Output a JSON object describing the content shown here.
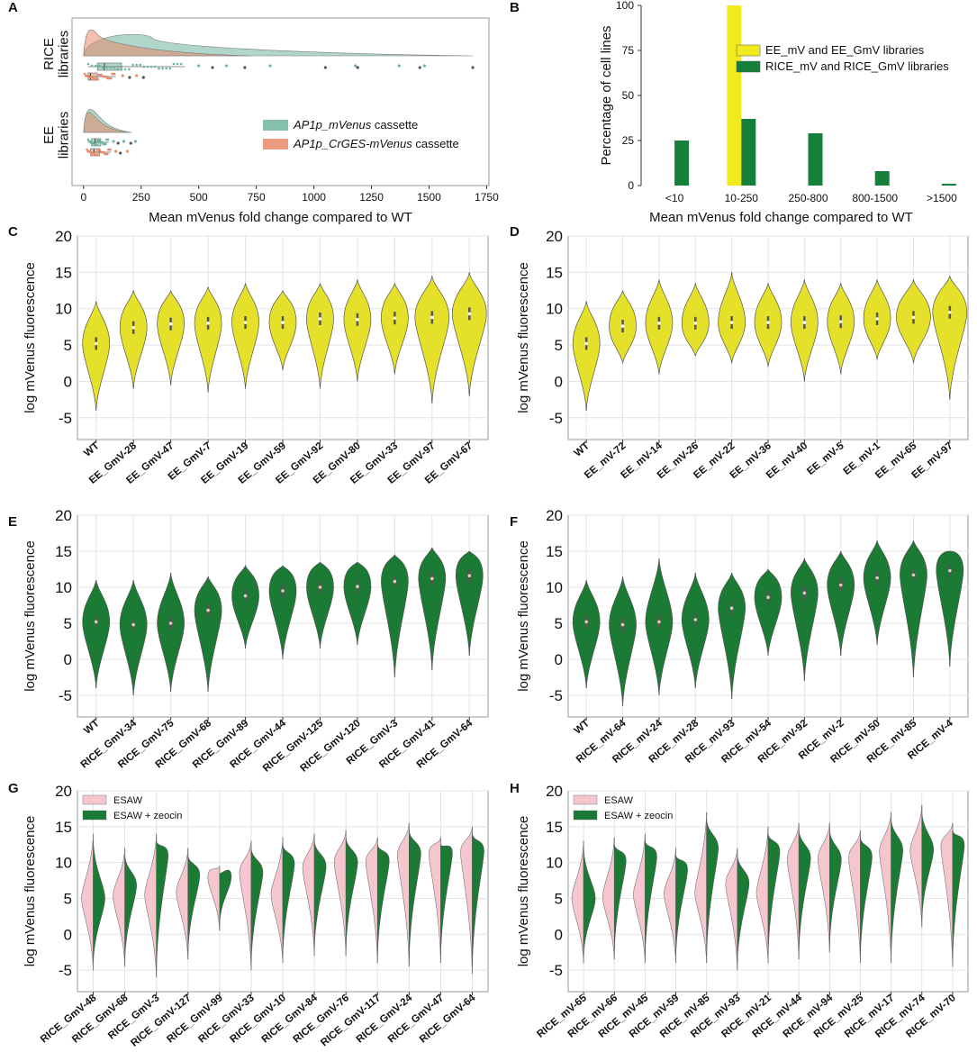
{
  "figure": {
    "panels": [
      "A",
      "B",
      "C",
      "D",
      "E",
      "F",
      "G",
      "H"
    ]
  },
  "chart_data": [
    {
      "panel": "A",
      "type": "raincloud",
      "xlabel": "Mean mVenus fold change compared to WT",
      "xticks": [
        0,
        250,
        500,
        750,
        1000,
        1250,
        1500,
        1750
      ],
      "xlim": [
        -50,
        1760
      ],
      "groups": [
        {
          "label": "RICE libraries",
          "label_lines": [
            "RICE",
            "libraries"
          ],
          "series": [
            {
              "name": "AP1p_mVenus",
              "box": [
                20,
                60,
                165,
                440
              ],
              "median": 90,
              "outliers": [
                500,
                560,
                620,
                700,
                810,
                1050,
                1180,
                1190,
                1370,
                1460,
                1480,
                1690
              ],
              "density_peak": 300,
              "density_extent": 1690
            },
            {
              "name": "AP1p_CrGES-mVenus",
              "box": [
                5,
                20,
                60,
                140
              ],
              "median": 30,
              "outliers": [
                170,
                200,
                230,
                260
              ],
              "density_peak": 60,
              "density_extent": 720
            }
          ]
        },
        {
          "label": "EE libraries",
          "label_lines": [
            "EE",
            "libraries"
          ],
          "series": [
            {
              "name": "AP1p_mVenus",
              "box": [
                20,
                35,
                75,
                110
              ],
              "median": 50,
              "outliers": [
                130,
                150,
                175,
                205,
                225
              ],
              "density_peak": 55,
              "density_extent": 210
            },
            {
              "name": "AP1p_CrGES-mVenus",
              "box": [
                15,
                30,
                70,
                120
              ],
              "median": 45,
              "outliers": [
                140,
                160,
                190
              ],
              "density_peak": 45,
              "density_extent": 190
            }
          ]
        }
      ],
      "legend": [
        {
          "label_italic": "AP1p_mVenus",
          "label_suffix": " cassette",
          "color": "#6fb59f"
        },
        {
          "label_italic": "AP1p_CrGES-mVenus",
          "label_suffix": " cassette",
          "color": "#e8896a"
        }
      ]
    },
    {
      "panel": "B",
      "type": "bar",
      "categories": [
        "<10",
        "10-250",
        "250-800",
        "800-1500",
        ">1500"
      ],
      "series": [
        {
          "name": "EE_mV and EE_GmV libraries",
          "color": "#f0ea1f",
          "values": [
            0,
            100,
            0,
            0,
            0
          ]
        },
        {
          "name": "RICE_mV and RICE_GmV libraries",
          "color": "#16803a",
          "values": [
            25,
            37,
            29,
            8,
            1
          ]
        }
      ],
      "ylabel": "Percentage of cell lines",
      "xlabel": "Mean mVenus fold change compared to WT",
      "yticks": [
        0,
        25,
        50,
        75,
        100
      ],
      "ylim": [
        0,
        100
      ]
    },
    {
      "panel": "C",
      "type": "violin",
      "color": "#e5e02a",
      "ylabel": "log mVenus fluorescence",
      "yticks": [
        -5,
        0,
        5,
        10,
        15,
        20
      ],
      "ylim": [
        -8,
        20
      ],
      "categories": [
        "WT",
        "EE_GmV-28",
        "EE_GmV-47",
        "EE_GmV-7",
        "EE_GmV-19",
        "EE_GmV-59",
        "EE_GmV-92",
        "EE_GmV-80",
        "EE_GmV-33",
        "EE_GmV-97",
        "EE_GmV-67"
      ],
      "medians": [
        5.2,
        7.4,
        7.9,
        8.0,
        8.1,
        8.1,
        8.6,
        8.5,
        8.7,
        8.8,
        9.3
      ],
      "ranges": [
        [
          -4,
          11
        ],
        [
          -1,
          12.5
        ],
        [
          -0.5,
          12.5
        ],
        [
          -1.5,
          13
        ],
        [
          -1,
          13.5
        ],
        [
          1.5,
          12.5
        ],
        [
          -1,
          13.5
        ],
        [
          0,
          14
        ],
        [
          1,
          13.5
        ],
        [
          -3,
          14.5
        ],
        [
          -2,
          15
        ]
      ]
    },
    {
      "panel": "D",
      "type": "violin",
      "color": "#e5e02a",
      "ylabel": "log mVenus fluorescence",
      "yticks": [
        -5,
        0,
        5,
        10,
        15,
        20
      ],
      "ylim": [
        -8,
        20
      ],
      "categories": [
        "WT",
        "EE_mV-72",
        "EE_mV-14",
        "EE_mV-26",
        "EE_mV-22",
        "EE_mV-36",
        "EE_mV-40",
        "EE_mV-5",
        "EE_mV-1",
        "EE_mV-65",
        "EE_mV-97"
      ],
      "medians": [
        5.2,
        7.6,
        8.0,
        8.0,
        8.1,
        8.1,
        8.1,
        8.2,
        8.6,
        8.8,
        9.5
      ],
      "ranges": [
        [
          -4,
          11
        ],
        [
          2.5,
          12.5
        ],
        [
          1,
          14
        ],
        [
          3.5,
          13.5
        ],
        [
          2.5,
          15
        ],
        [
          2,
          13.5
        ],
        [
          0,
          14
        ],
        [
          1,
          13.5
        ],
        [
          3,
          14
        ],
        [
          2.5,
          14
        ],
        [
          -2.5,
          14.5
        ]
      ]
    },
    {
      "panel": "E",
      "type": "violin",
      "color": "#1b7a34",
      "ylabel": "log mVenus fluorescence",
      "yticks": [
        -5,
        0,
        5,
        10,
        15,
        20
      ],
      "ylim": [
        -8,
        20
      ],
      "categories": [
        "WT",
        "RICE_GmV-34",
        "RICE_GmV-75",
        "RICE_GmV-68",
        "RICE_GmV-89",
        "RICE_GmV-44",
        "RICE_GmV-125",
        "RICE_GmV-120",
        "RICE_GmV-3",
        "RICE_GmV-41",
        "RICE_GmV-64"
      ],
      "medians": [
        5.2,
        4.8,
        5.0,
        6.8,
        8.8,
        9.5,
        10.0,
        10.1,
        10.8,
        11.2,
        11.6
      ],
      "ranges": [
        [
          -4,
          11
        ],
        [
          -5,
          11
        ],
        [
          -4.5,
          12
        ],
        [
          -4.5,
          11.5
        ],
        [
          1.5,
          13
        ],
        [
          0,
          13
        ],
        [
          1.5,
          13.5
        ],
        [
          2,
          13.5
        ],
        [
          -2.5,
          14.5
        ],
        [
          -1.5,
          15.5
        ],
        [
          0.5,
          15
        ]
      ]
    },
    {
      "panel": "F",
      "type": "violin",
      "color": "#1b7a34",
      "ylabel": "log mVenus fluorescence",
      "yticks": [
        -5,
        0,
        5,
        10,
        15,
        20
      ],
      "ylim": [
        -8,
        20
      ],
      "categories": [
        "WT",
        "RICE_mV-64",
        "RICE_mV-24",
        "RICE_mV-28",
        "RICE_mV-93",
        "RICE_mV-54",
        "RICE_mV-92",
        "RICE_mV-2",
        "RICE_mV-50",
        "RICE_mV-85",
        "RICE_mV-4"
      ],
      "medians": [
        5.2,
        4.8,
        5.2,
        5.5,
        7.1,
        8.6,
        9.2,
        10.3,
        11.3,
        11.7,
        12.3
      ],
      "ranges": [
        [
          -4,
          11
        ],
        [
          -6.5,
          11.5
        ],
        [
          -5,
          14
        ],
        [
          -4,
          12
        ],
        [
          -5.5,
          12
        ],
        [
          0.5,
          12.5
        ],
        [
          -3,
          14
        ],
        [
          0.5,
          15
        ],
        [
          2,
          16.5
        ],
        [
          -2.5,
          16.5
        ],
        [
          -1,
          15
        ]
      ]
    },
    {
      "panel": "G",
      "type": "split-violin",
      "ylabel": "log mVenus fluorescence",
      "yticks": [
        -5,
        0,
        5,
        10,
        15,
        20
      ],
      "ylim": [
        -8,
        20
      ],
      "legend": [
        {
          "name": "ESAW",
          "color": "#f6c6cf"
        },
        {
          "name": "ESAW + zeocin",
          "color": "#1b7a34"
        }
      ],
      "categories": [
        "RICE_GmV-48",
        "RICE_GmV-68",
        "RICE_GmV-3",
        "RICE_GmV-127",
        "RICE_GmV-99",
        "RICE_GmV-33",
        "RICE_GmV-10",
        "RICE_GmV-84",
        "RICE_GmV-76",
        "RICE_GmV-117",
        "RICE_GmV-24",
        "RICE_GmV-47",
        "RICE_GmV-64"
      ],
      "esaw_medians": [
        5.0,
        5.3,
        5.5,
        5.8,
        8.0,
        8.5,
        5.5,
        9.2,
        10.0,
        10.0,
        11.0,
        11.2,
        11.4
      ],
      "zeocin_medians": [
        5.0,
        6.8,
        11.0,
        8.2,
        8.1,
        8.6,
        9.8,
        9.4,
        10.0,
        10.2,
        11.2,
        11.3,
        11.6
      ],
      "ranges": [
        [
          -5,
          14
        ],
        [
          -4.5,
          12
        ],
        [
          -6,
          14
        ],
        [
          -3.5,
          12
        ],
        [
          0.5,
          9.5
        ],
        [
          -5,
          13
        ],
        [
          -4,
          13.5
        ],
        [
          -3,
          14
        ],
        [
          -3,
          14.5
        ],
        [
          -4,
          13.5
        ],
        [
          -4.5,
          15.5
        ],
        [
          -4,
          13.5
        ],
        [
          -5.5,
          15
        ]
      ]
    },
    {
      "panel": "H",
      "type": "split-violin",
      "ylabel": "log mVenus fluorescence",
      "yticks": [
        -5,
        0,
        5,
        10,
        15,
        20
      ],
      "ylim": [
        -8,
        20
      ],
      "legend": [
        {
          "name": "ESAW",
          "color": "#f6c6cf"
        },
        {
          "name": "ESAW + zeocin",
          "color": "#1b7a34"
        }
      ],
      "categories": [
        "RICE_mV-65",
        "RICE_mV-66",
        "RICE_mV-45",
        "RICE_mV-59",
        "RICE_mV-85",
        "RICE_mV-93",
        "RICE_mV-21",
        "RICE_mV-44",
        "RICE_mV-94",
        "RICE_mV-25",
        "RICE_mV-17",
        "RICE_mV-74",
        "RICE_mV-70"
      ],
      "esaw_medians": [
        5.0,
        5.2,
        5.5,
        5.6,
        5.8,
        7.0,
        5.8,
        10.5,
        10.5,
        10.6,
        11.5,
        11.6,
        12.2
      ],
      "zeocin_medians": [
        5.0,
        10.2,
        10.8,
        9.0,
        12.0,
        7.1,
        11.5,
        10.6,
        10.4,
        10.8,
        11.7,
        11.8,
        12.4
      ],
      "ranges": [
        [
          -4,
          13
        ],
        [
          -3.5,
          13.5
        ],
        [
          -4,
          14
        ],
        [
          -4,
          12
        ],
        [
          -4,
          17
        ],
        [
          -5,
          12
        ],
        [
          -4,
          15
        ],
        [
          -3.5,
          15.5
        ],
        [
          -2.5,
          15.5
        ],
        [
          -4,
          14.5
        ],
        [
          -4,
          17
        ],
        [
          1,
          18
        ],
        [
          -4.5,
          15.5
        ]
      ]
    }
  ]
}
